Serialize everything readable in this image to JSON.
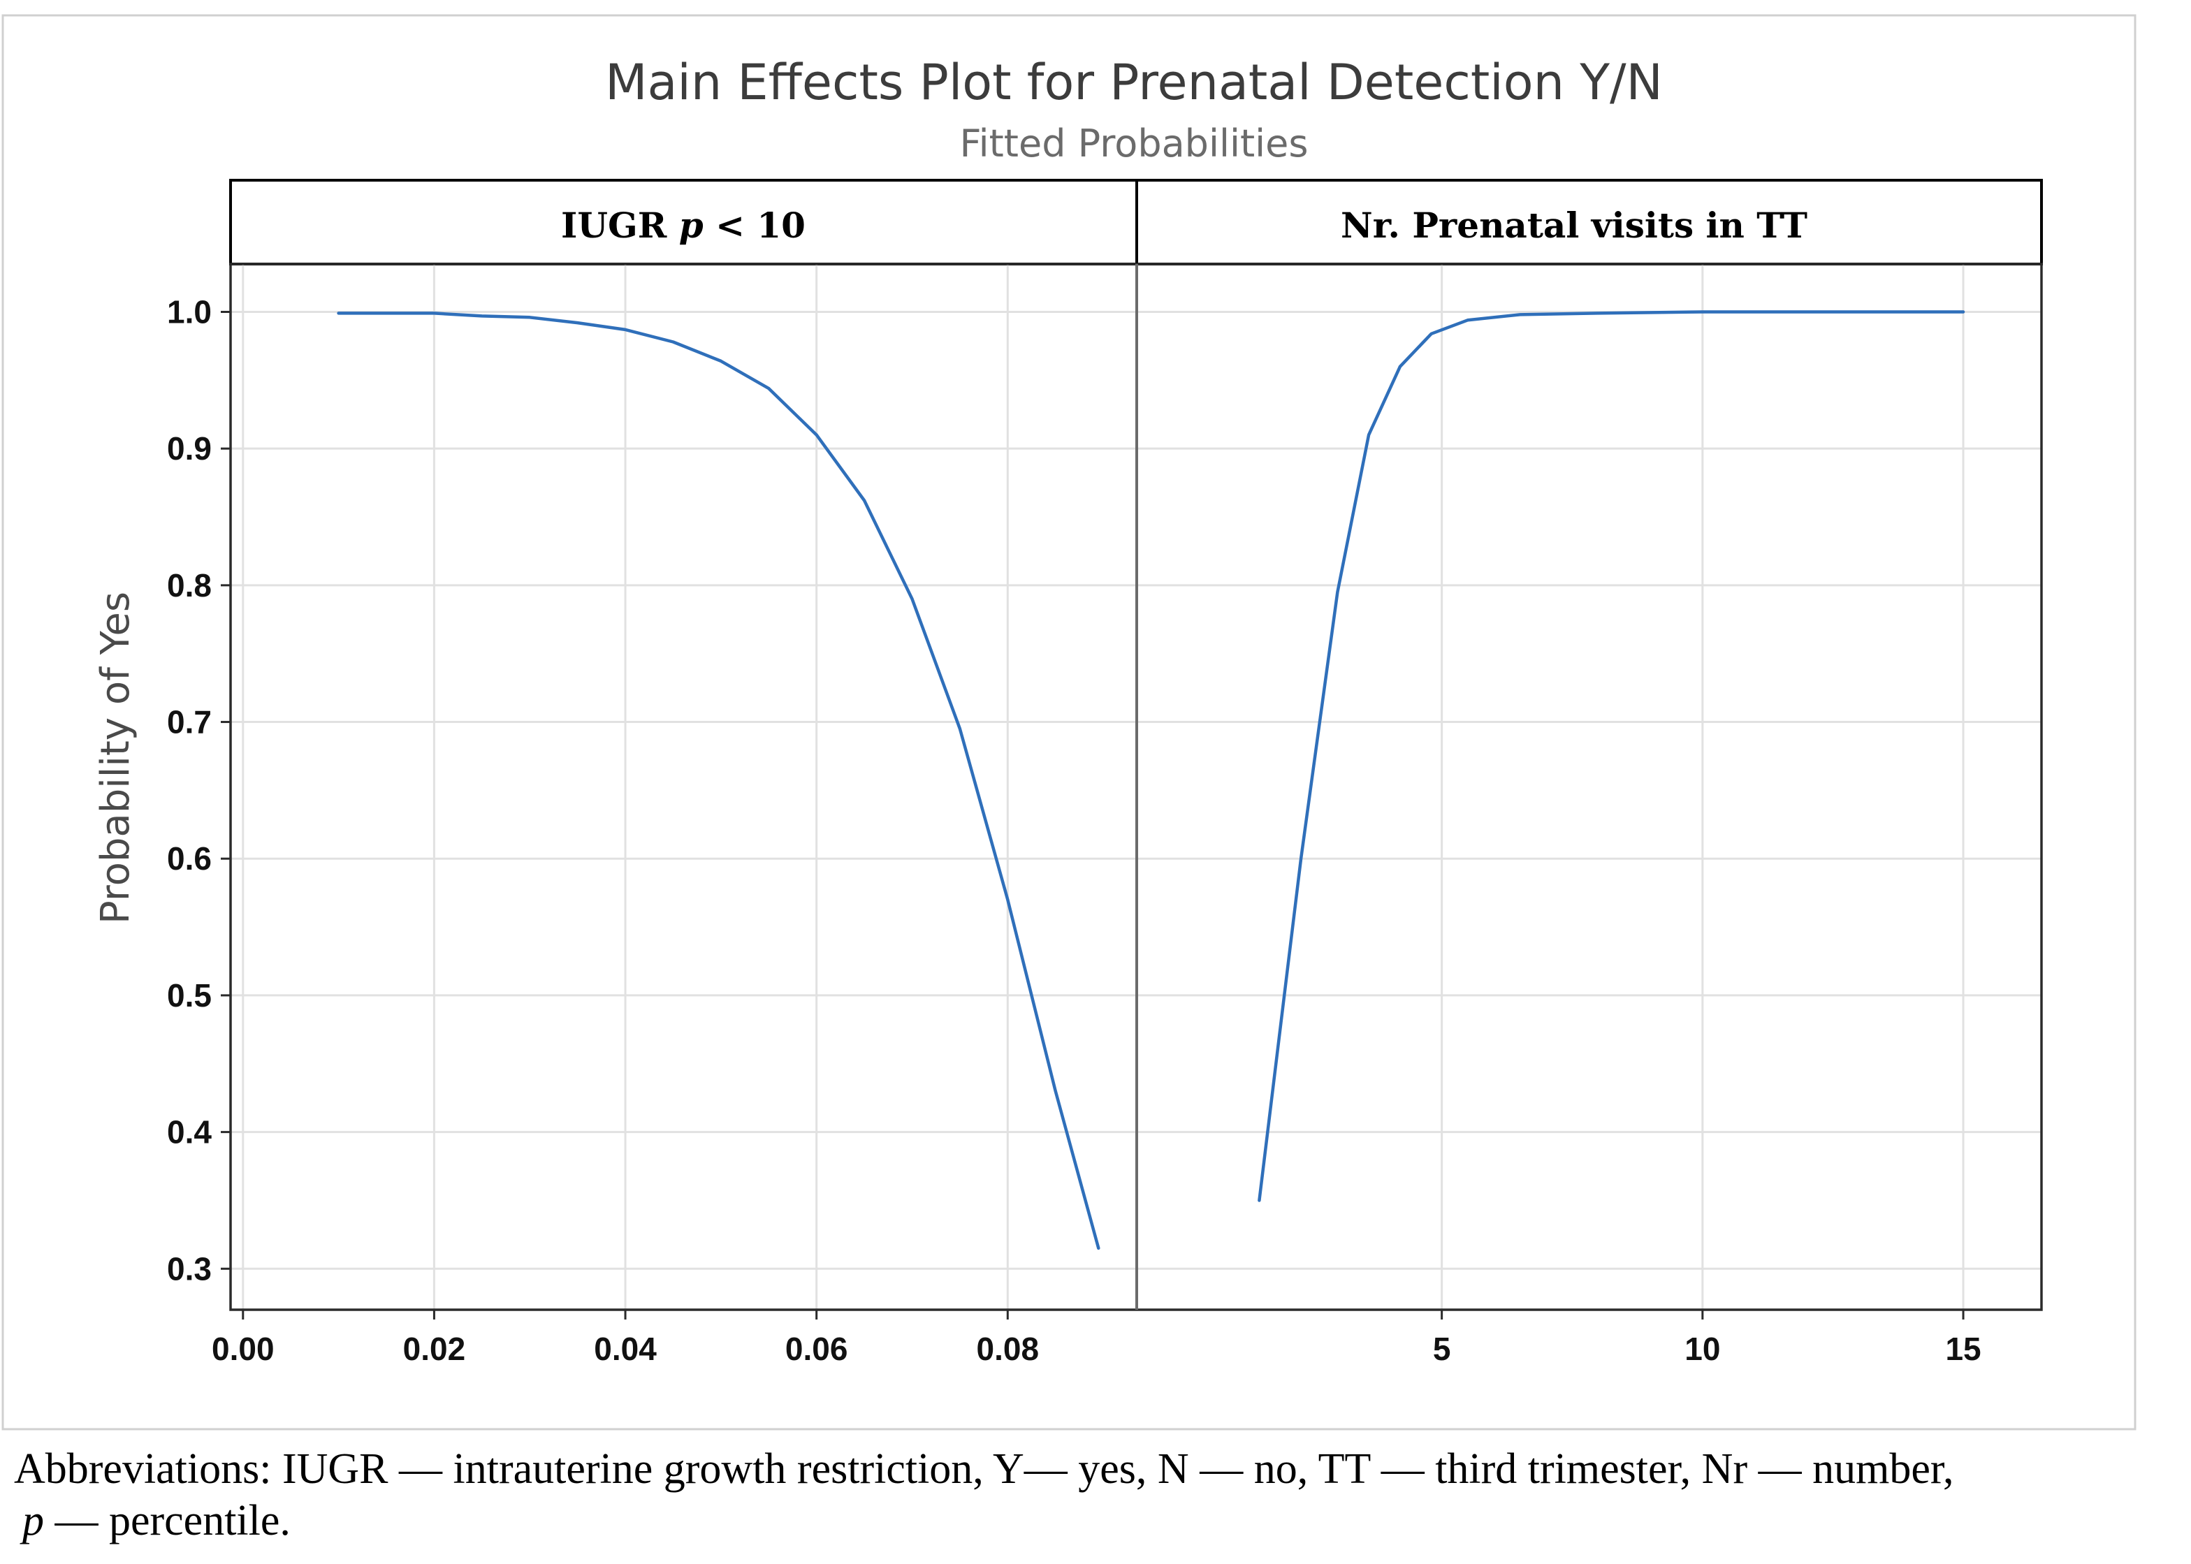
{
  "chart_data": {
    "type": "line",
    "title": "Main Effects Plot for Prenatal Detection Y/N",
    "subtitle": "Fitted Probabilities",
    "ylabel": "Probability of Yes",
    "ylim": [
      0.27,
      1.035
    ],
    "yticks": [
      0.3,
      0.4,
      0.5,
      0.6,
      0.7,
      0.8,
      0.9,
      1.0
    ],
    "ytick_labels": [
      "0.3",
      "0.4",
      "0.5",
      "0.6",
      "0.7",
      "0.8",
      "0.9",
      "1.0"
    ],
    "grid": true,
    "color": "#2f6fba",
    "panels": [
      {
        "label_main": "IUGR ",
        "label_italic": "p",
        "label_tail": " < 10",
        "xlim": [
          -0.0013,
          0.0935
        ],
        "xticks": [
          0.0,
          0.02,
          0.04,
          0.06,
          0.08
        ],
        "xtick_labels": [
          "0.00",
          "0.02",
          "0.04",
          "0.06",
          "0.08"
        ],
        "x": [
          0.01,
          0.015,
          0.02,
          0.025,
          0.03,
          0.035,
          0.04,
          0.045,
          0.05,
          0.055,
          0.06,
          0.065,
          0.07,
          0.075,
          0.08,
          0.085,
          0.0895
        ],
        "y": [
          0.999,
          0.999,
          0.999,
          0.997,
          0.996,
          0.992,
          0.987,
          0.978,
          0.964,
          0.944,
          0.91,
          0.862,
          0.79,
          0.695,
          0.57,
          0.43,
          0.315
        ]
      },
      {
        "label_main": "Nr. Prenatal visits in TT",
        "label_italic": "",
        "label_tail": "",
        "xlim": [
          -0.85,
          16.5
        ],
        "xticks": [
          5,
          10,
          15
        ],
        "xtick_labels": [
          "5",
          "10",
          "15"
        ],
        "x": [
          1.5,
          2.3,
          3.0,
          3.6,
          4.2,
          4.8,
          5.5,
          6.5,
          8.0,
          10.0,
          12.5,
          15.0
        ],
        "y": [
          0.35,
          0.6,
          0.795,
          0.91,
          0.96,
          0.984,
          0.994,
          0.998,
          0.999,
          1.0,
          1.0,
          1.0
        ]
      }
    ]
  },
  "caption": {
    "line1": "Abbreviations: IUGR — intrauterine growth restriction, Y— yes, N — no, TT — third trimester, Nr — number,",
    "line2_italic": "p",
    "line2_rest": " — percentile."
  }
}
